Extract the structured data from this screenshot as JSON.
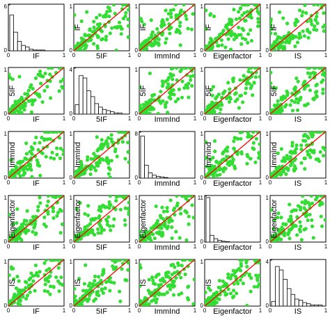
{
  "colors": {
    "points": "#33dd33",
    "fit_line": "#ff0000",
    "bars": "#ffffff",
    "frame": "#000000"
  },
  "chart_data": {
    "type": "scatter",
    "layout": "scatterplot-matrix",
    "variables": [
      "IF",
      "5IF",
      "ImmInd",
      "Eigenfactor",
      "IS"
    ],
    "axis_range": [
      0,
      1
    ],
    "x_ticks": [
      "0",
      "1"
    ],
    "grid": false,
    "legend": "none",
    "histograms": [
      {
        "variable": "IF",
        "ylim": [
          0,
          6
        ],
        "ytick_top": "6",
        "ytick_bottom": "0",
        "bin_values": [
          4.6,
          2.4,
          1.2,
          0.7,
          0.5,
          0.2,
          0.1,
          0.1,
          0.1,
          0,
          0,
          0,
          0
        ]
      },
      {
        "variable": "5IF",
        "ylim": [
          0,
          4
        ],
        "ytick_top": "4",
        "ytick_bottom": "0",
        "bin_values": [
          0.8,
          3.3,
          3.1,
          2.0,
          1.5,
          0.9,
          0.6,
          0.4,
          0.3,
          0.2,
          0.1,
          0.1,
          0
        ]
      },
      {
        "variable": "ImmInd",
        "ylim": [
          0,
          8
        ],
        "ytick_top": "8",
        "ytick_bottom": "0",
        "bin_values": [
          7.2,
          2.2,
          0.9,
          0.5,
          0.3,
          0.2,
          0.1,
          0,
          0,
          0,
          0,
          0,
          0
        ]
      },
      {
        "variable": "Eigenfactor",
        "ylim": [
          0,
          11
        ],
        "ytick_top": "11",
        "ytick_bottom": "0",
        "bin_values": [
          10.5,
          1.6,
          0.8,
          0.4,
          0.2,
          0.1,
          0,
          0,
          0,
          0,
          0,
          0,
          0
        ]
      },
      {
        "variable": "IS",
        "ylim": [
          0,
          4
        ],
        "ytick_top": "4",
        "ytick_bottom": "0",
        "bin_values": [
          0.4,
          3.4,
          3.1,
          2.3,
          1.5,
          1.0,
          0.6,
          0.5,
          0.3,
          0.2,
          0.1,
          0.1,
          0.1
        ]
      }
    ],
    "scatter_points": 130,
    "fit_line": {
      "from": [
        0,
        0
      ],
      "to": [
        1,
        1
      ]
    }
  }
}
